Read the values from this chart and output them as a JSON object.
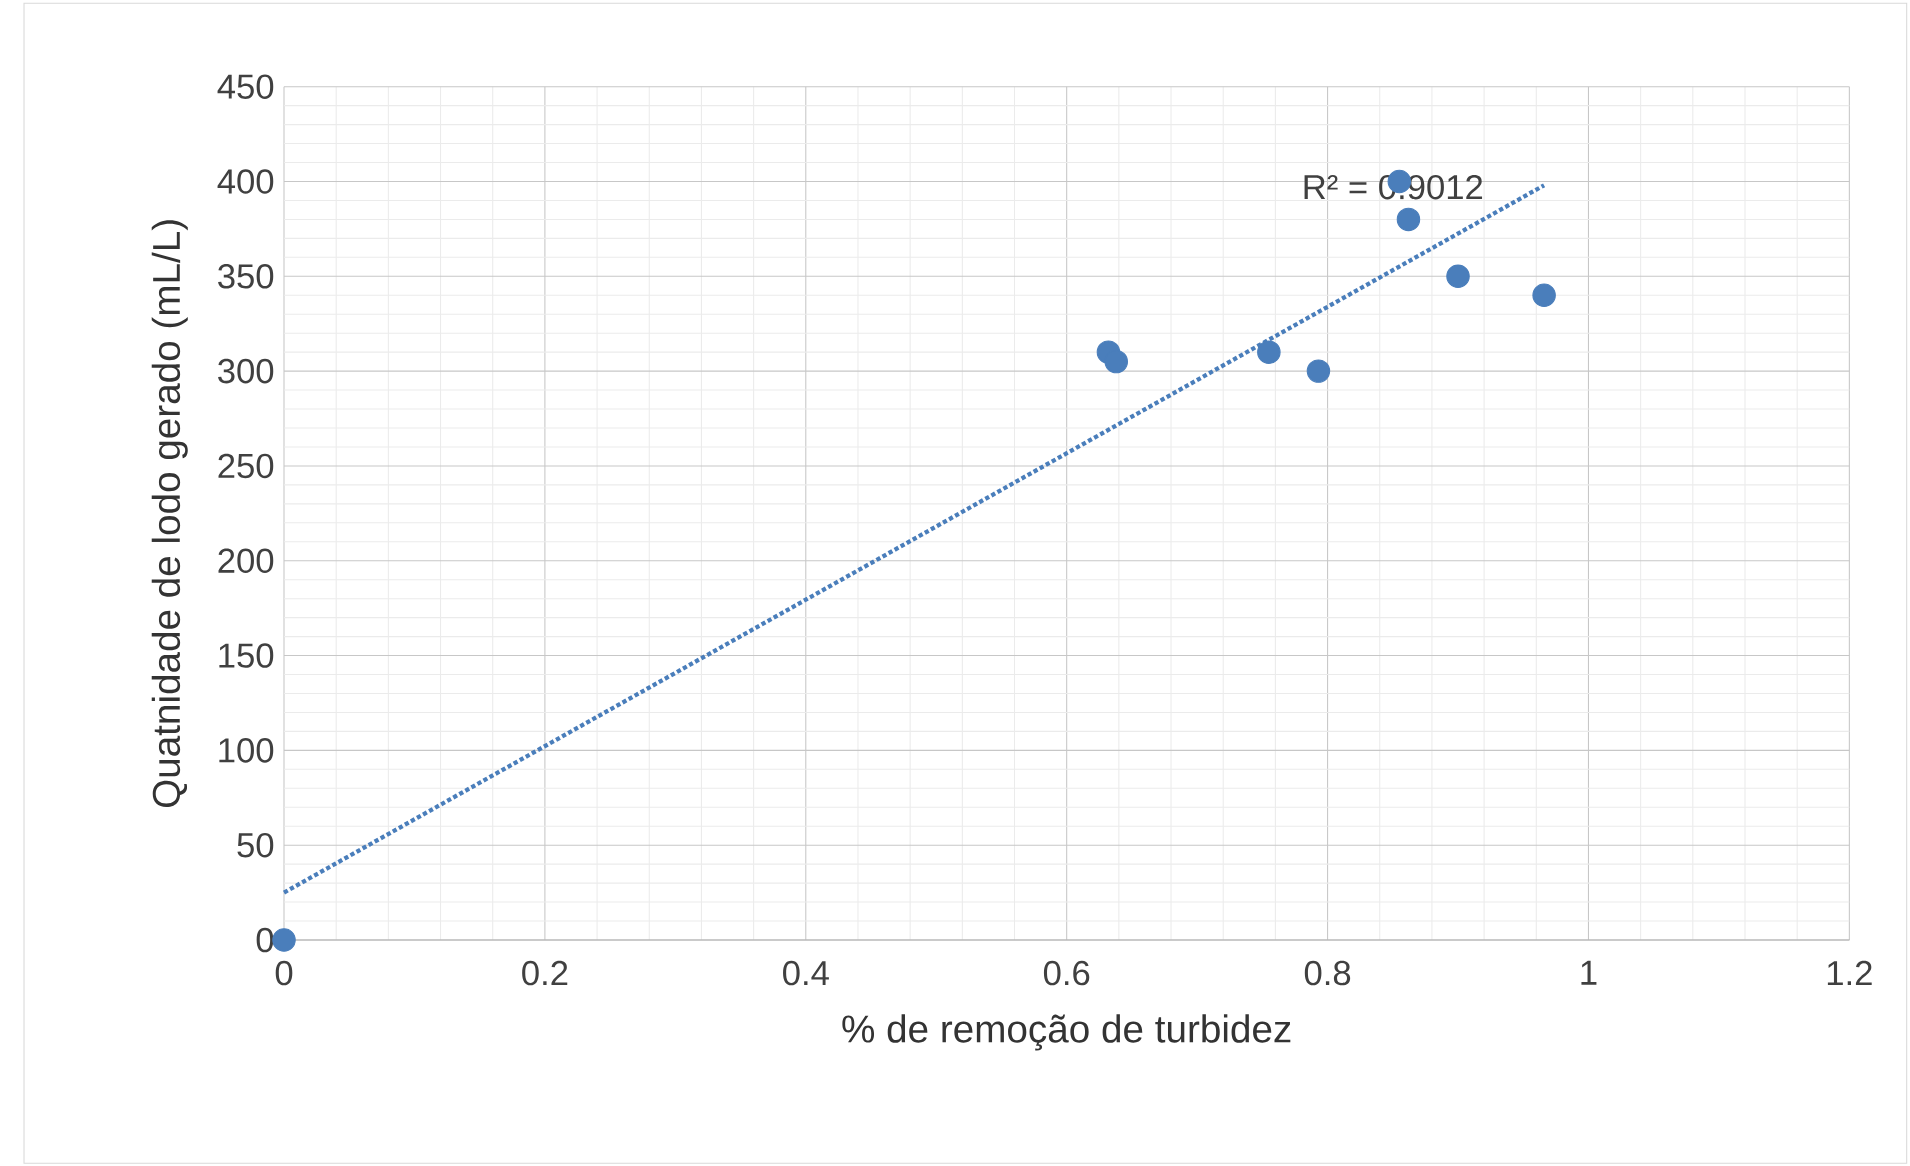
{
  "chart_data": {
    "type": "scatter",
    "xlabel": "% de remoção de turbidez",
    "ylabel": "Quatnidade de lodo gerado (mL/L)",
    "series": [
      {
        "color": "#4a7ebb",
        "marker": "circle",
        "x": [
          0,
          0.632,
          0.638,
          0.755,
          0.793,
          0.855,
          0.862,
          0.9,
          0.966
        ],
        "values": [
          0,
          310,
          305,
          310,
          300,
          400,
          380,
          350,
          340
        ]
      },
      {
        "type": "line",
        "color": "#4a7ebb",
        "marker": "none",
        "line_style": "dotted",
        "x": [
          0,
          0.966
        ],
        "values": [
          25,
          398
        ]
      }
    ],
    "annotations": [
      {
        "text": "R² = 0.9012",
        "x": 0.85,
        "y": 397
      }
    ],
    "xlim": [
      0,
      1.2
    ],
    "xticks": [
      0,
      0.2,
      0.4,
      0.6,
      0.8,
      1,
      1.2
    ],
    "ylim": [
      0,
      450
    ],
    "yticks": [
      0,
      50,
      100,
      150,
      200,
      250,
      300,
      350,
      400,
      450
    ],
    "grid": true
  }
}
